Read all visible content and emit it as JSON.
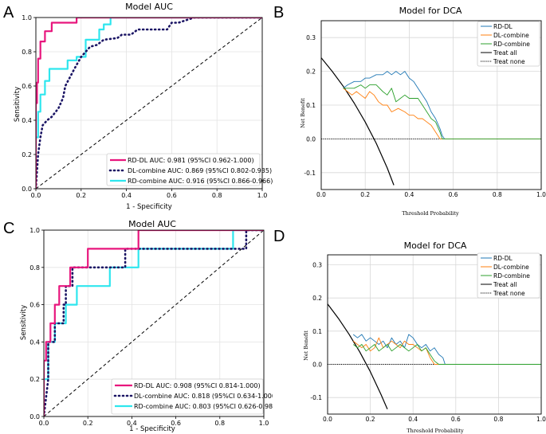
{
  "chart_data": [
    {
      "id": "A",
      "type": "line",
      "panel_label": "A",
      "title": "Model AUC",
      "xlabel": "1 - Specificity",
      "ylabel": "Sensitivity",
      "xlim": [
        0,
        1
      ],
      "ylim": [
        0,
        1
      ],
      "xticks": [
        "0.0",
        "0.2",
        "0.4",
        "0.6",
        "0.8",
        "1.0"
      ],
      "yticks": [
        "0.0",
        "0.2",
        "0.4",
        "0.6",
        "0.8",
        "1.0"
      ],
      "legend_position": "lower-right",
      "grid": true,
      "diagonal": true,
      "series": [
        {
          "name": "RD-DL AUC: 0.981 (95%CI 0.962-1.000)",
          "color": "#e8167d",
          "dash": "solid",
          "x": [
            0,
            0,
            0.005,
            0.005,
            0.01,
            0.01,
            0.02,
            0.02,
            0.04,
            0.04,
            0.07,
            0.07,
            0.12,
            0.12,
            0.18,
            0.18,
            1
          ],
          "y": [
            0,
            0.5,
            0.5,
            0.62,
            0.62,
            0.76,
            0.76,
            0.86,
            0.86,
            0.92,
            0.92,
            0.97,
            0.97,
            0.97,
            0.97,
            1,
            1
          ]
        },
        {
          "name": "DL-combine AUC: 0.869 (95%CI 0.802-0.935)",
          "color": "#1a1464",
          "dash": "dot",
          "x": [
            0,
            0.01,
            0.02,
            0.03,
            0.05,
            0.07,
            0.1,
            0.12,
            0.13,
            0.15,
            0.17,
            0.2,
            0.22,
            0.24,
            0.27,
            0.3,
            0.36,
            0.38,
            0.42,
            0.45,
            0.58,
            0.6,
            0.63,
            0.7,
            1
          ],
          "y": [
            0,
            0.2,
            0.3,
            0.37,
            0.4,
            0.42,
            0.47,
            0.53,
            0.6,
            0.65,
            0.7,
            0.77,
            0.8,
            0.83,
            0.84,
            0.87,
            0.88,
            0.9,
            0.9,
            0.93,
            0.93,
            0.97,
            0.97,
            1,
            1
          ]
        },
        {
          "name": "RD-combine AUC: 0.916 (95%CI 0.866-0.966)",
          "color": "#2ee6ee",
          "dash": "solid",
          "x": [
            0,
            0,
            0.01,
            0.01,
            0.02,
            0.02,
            0.04,
            0.04,
            0.06,
            0.06,
            0.14,
            0.14,
            0.18,
            0.18,
            0.22,
            0.22,
            0.28,
            0.28,
            0.3,
            0.3,
            0.33,
            0.33,
            1
          ],
          "y": [
            0,
            0.3,
            0.3,
            0.45,
            0.45,
            0.55,
            0.55,
            0.63,
            0.63,
            0.7,
            0.7,
            0.75,
            0.75,
            0.77,
            0.77,
            0.87,
            0.87,
            0.93,
            0.93,
            0.96,
            0.96,
            1,
            1
          ]
        }
      ]
    },
    {
      "id": "B",
      "type": "line",
      "panel_label": "B",
      "title": "Model for DCA",
      "xlabel": "Threshold Probability",
      "ylabel": "Net Benefit",
      "xlim": [
        0,
        1
      ],
      "ylim": [
        -0.15,
        0.35
      ],
      "xticks": [
        "0.0",
        "0.2",
        "0.4",
        "0.6",
        "0.8",
        "1.0"
      ],
      "yticks": [
        "-0.1",
        "0.0",
        "0.1",
        "0.2",
        "0.3"
      ],
      "legend_position": "top-right",
      "grid": true,
      "series": [
        {
          "name": "RD-DL",
          "color": "#1f77b4",
          "dash": "solid",
          "x": [
            0.1,
            0.12,
            0.15,
            0.18,
            0.2,
            0.22,
            0.25,
            0.28,
            0.3,
            0.32,
            0.34,
            0.36,
            0.38,
            0.4,
            0.42,
            0.44,
            0.46,
            0.48,
            0.5,
            0.52,
            0.54,
            0.55,
            0.56,
            1
          ],
          "y": [
            0.15,
            0.16,
            0.17,
            0.17,
            0.18,
            0.18,
            0.19,
            0.19,
            0.2,
            0.19,
            0.2,
            0.19,
            0.2,
            0.18,
            0.17,
            0.15,
            0.13,
            0.11,
            0.08,
            0.06,
            0.03,
            0.01,
            0,
            0
          ]
        },
        {
          "name": "DL-combine",
          "color": "#ff7f0e",
          "dash": "solid",
          "x": [
            0.1,
            0.12,
            0.14,
            0.16,
            0.18,
            0.2,
            0.22,
            0.24,
            0.26,
            0.28,
            0.3,
            0.32,
            0.35,
            0.38,
            0.4,
            0.42,
            0.44,
            0.46,
            0.48,
            0.5,
            0.52,
            0.54,
            1
          ],
          "y": [
            0.15,
            0.14,
            0.13,
            0.14,
            0.13,
            0.12,
            0.14,
            0.13,
            0.11,
            0.1,
            0.1,
            0.08,
            0.09,
            0.08,
            0.07,
            0.07,
            0.06,
            0.06,
            0.05,
            0.04,
            0.02,
            0,
            0
          ]
        },
        {
          "name": "RD-combine",
          "color": "#2ca02c",
          "dash": "solid",
          "x": [
            0.1,
            0.12,
            0.15,
            0.18,
            0.2,
            0.22,
            0.25,
            0.28,
            0.3,
            0.32,
            0.34,
            0.36,
            0.38,
            0.4,
            0.42,
            0.44,
            0.46,
            0.48,
            0.5,
            0.52,
            0.54,
            0.55,
            1
          ],
          "y": [
            0.15,
            0.15,
            0.15,
            0.16,
            0.15,
            0.16,
            0.16,
            0.14,
            0.13,
            0.15,
            0.11,
            0.12,
            0.13,
            0.12,
            0.12,
            0.12,
            0.1,
            0.08,
            0.06,
            0.05,
            0.02,
            0,
            0
          ]
        },
        {
          "name": "Treat all",
          "color": "#000000",
          "dash": "solid",
          "x": [
            0,
            0.05,
            0.1,
            0.15,
            0.2,
            0.25,
            0.3,
            0.33
          ],
          "y": [
            0.24,
            0.2,
            0.156,
            0.106,
            0.05,
            -0.013,
            -0.086,
            -0.137
          ]
        },
        {
          "name": "Treat none",
          "color": "#000000",
          "dash": "dot",
          "x": [
            0,
            1
          ],
          "y": [
            0,
            0
          ]
        }
      ]
    },
    {
      "id": "C",
      "type": "line",
      "panel_label": "C",
      "title": "Model AUC",
      "xlabel": "1 - Specificity",
      "ylabel": "Sensitivity",
      "xlim": [
        0,
        1
      ],
      "ylim": [
        0,
        1
      ],
      "xticks": [
        "0.0",
        "0.2",
        "0.4",
        "0.6",
        "0.8",
        "1.0"
      ],
      "yticks": [
        "0.0",
        "0.2",
        "0.4",
        "0.6",
        "0.8",
        "1.0"
      ],
      "legend_position": "lower-right",
      "grid": true,
      "diagonal": true,
      "series": [
        {
          "name": "RD-DL AUC: 0.908 (95%CI 0.814-1.000)",
          "color": "#e8167d",
          "dash": "solid",
          "x": [
            0,
            0,
            0.01,
            0.01,
            0.03,
            0.03,
            0.05,
            0.05,
            0.07,
            0.07,
            0.12,
            0.12,
            0.2,
            0.2,
            0.43,
            0.43,
            1
          ],
          "y": [
            0,
            0.3,
            0.3,
            0.4,
            0.4,
            0.5,
            0.5,
            0.6,
            0.6,
            0.7,
            0.7,
            0.8,
            0.8,
            0.9,
            0.9,
            1,
            1
          ]
        },
        {
          "name": "DL-combine AUC: 0.818 (95%CI 0.634-1.000)",
          "color": "#1a1464",
          "dash": "dot",
          "x": [
            0,
            0.02,
            0.02,
            0.05,
            0.05,
            0.09,
            0.09,
            0.1,
            0.1,
            0.13,
            0.13,
            0.22,
            0.22,
            0.37,
            0.37,
            0.42,
            0.42,
            0.92,
            0.92,
            1
          ],
          "y": [
            0,
            0.2,
            0.4,
            0.4,
            0.5,
            0.5,
            0.6,
            0.6,
            0.7,
            0.7,
            0.8,
            0.8,
            0.8,
            0.8,
            0.9,
            0.9,
            0.9,
            0.9,
            1,
            1
          ]
        },
        {
          "name": "RD-combine AUC: 0.803 (95%CI 0.626-0.980)",
          "color": "#2ee6ee",
          "dash": "solid",
          "x": [
            0,
            0,
            0.02,
            0.02,
            0.05,
            0.05,
            0.1,
            0.1,
            0.15,
            0.15,
            0.18,
            0.18,
            0.3,
            0.3,
            0.43,
            0.43,
            0.86,
            0.86,
            1
          ],
          "y": [
            0,
            0.2,
            0.2,
            0.4,
            0.4,
            0.5,
            0.5,
            0.6,
            0.6,
            0.7,
            0.7,
            0.7,
            0.7,
            0.8,
            0.8,
            0.9,
            0.9,
            1,
            1
          ]
        }
      ]
    },
    {
      "id": "D",
      "type": "line",
      "panel_label": "D",
      "title": "Model for DCA",
      "xlabel": "Threshold Probability",
      "ylabel": "Net Benefit",
      "xlim": [
        0,
        1
      ],
      "ylim": [
        -0.15,
        0.33
      ],
      "xticks": [
        "0.0",
        "0.2",
        "0.4",
        "0.6",
        "0.8",
        "1.0"
      ],
      "yticks": [
        "-0.1",
        "0.0",
        "0.1",
        "0.2",
        "0.3"
      ],
      "legend_position": "top-right",
      "grid": true,
      "series": [
        {
          "name": "RD-DL",
          "color": "#1f77b4",
          "dash": "solid",
          "x": [
            0.12,
            0.14,
            0.16,
            0.18,
            0.2,
            0.22,
            0.24,
            0.26,
            0.28,
            0.3,
            0.32,
            0.34,
            0.36,
            0.38,
            0.4,
            0.42,
            0.44,
            0.46,
            0.48,
            0.5,
            0.52,
            0.54,
            0.55,
            1
          ],
          "y": [
            0.09,
            0.08,
            0.09,
            0.07,
            0.08,
            0.07,
            0.06,
            0.07,
            0.05,
            0.08,
            0.06,
            0.07,
            0.05,
            0.09,
            0.08,
            0.06,
            0.05,
            0.06,
            0.04,
            0.05,
            0.03,
            0.02,
            0,
            0
          ]
        },
        {
          "name": "DL-combine",
          "color": "#ff7f0e",
          "dash": "solid",
          "x": [
            0.12,
            0.14,
            0.16,
            0.18,
            0.2,
            0.22,
            0.24,
            0.26,
            0.28,
            0.3,
            0.32,
            0.34,
            0.36,
            0.38,
            0.4,
            0.42,
            0.44,
            0.46,
            0.48,
            0.5,
            1
          ],
          "y": [
            0.07,
            0.06,
            0.05,
            0.06,
            0.04,
            0.05,
            0.08,
            0.05,
            0.06,
            0.07,
            0.06,
            0.05,
            0.07,
            0.06,
            0.06,
            0.05,
            0.04,
            0.05,
            0.02,
            0,
            0
          ]
        },
        {
          "name": "RD-combine",
          "color": "#2ca02c",
          "dash": "solid",
          "x": [
            0.12,
            0.14,
            0.16,
            0.18,
            0.2,
            0.22,
            0.24,
            0.26,
            0.28,
            0.3,
            0.32,
            0.34,
            0.36,
            0.38,
            0.4,
            0.42,
            0.44,
            0.46,
            0.48,
            0.5,
            0.52,
            1
          ],
          "y": [
            0.06,
            0.05,
            0.06,
            0.04,
            0.05,
            0.06,
            0.04,
            0.05,
            0.06,
            0.04,
            0.05,
            0.06,
            0.05,
            0.04,
            0.05,
            0.06,
            0.04,
            0.05,
            0.03,
            0.01,
            0,
            0
          ]
        },
        {
          "name": "Treat all",
          "color": "#000000",
          "dash": "solid",
          "x": [
            0,
            0.05,
            0.1,
            0.15,
            0.2,
            0.25,
            0.28
          ],
          "y": [
            0.182,
            0.139,
            0.091,
            0.038,
            -0.022,
            -0.091,
            -0.135
          ]
        },
        {
          "name": "Treat none",
          "color": "#000000",
          "dash": "dot",
          "x": [
            0,
            1
          ],
          "y": [
            0,
            0
          ]
        }
      ]
    }
  ]
}
